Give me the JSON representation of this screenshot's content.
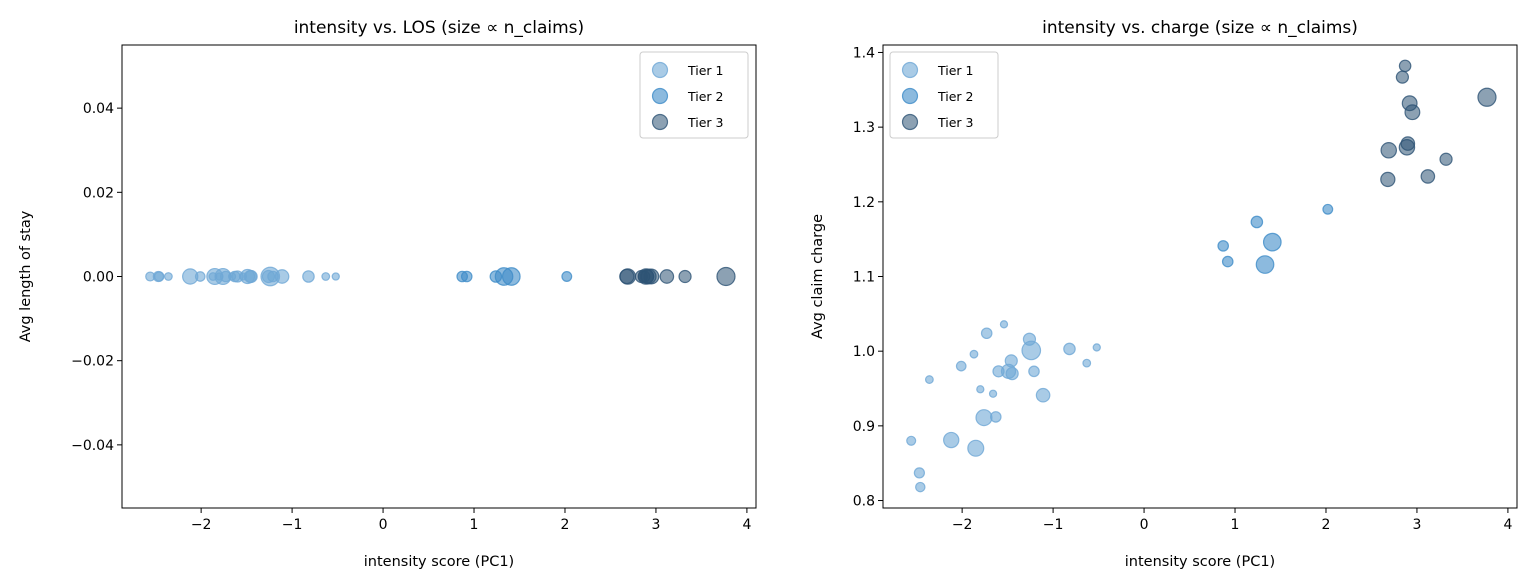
{
  "chart_data": [
    {
      "type": "scatter",
      "title": "intensity vs. LOS (size ∝ n_claims)",
      "xlabel": "intensity score (PC1)",
      "ylabel": "Avg length of stay",
      "xlim": [
        -2.87,
        4.1
      ],
      "ylim": [
        -0.055,
        0.055
      ],
      "xticks": [
        -2,
        -1,
        0,
        1,
        2,
        3,
        4
      ],
      "xtick_labels": [
        "−2",
        "−1",
        "0",
        "1",
        "2",
        "3",
        "4"
      ],
      "yticks": [
        -0.04,
        -0.02,
        0,
        0.02,
        0.04
      ],
      "ytick_labels": [
        "−0.04",
        "−0.02",
        "0.00",
        "0.02",
        "0.04"
      ],
      "legend": "top-right",
      "grid": false,
      "yfield": "los"
    },
    {
      "type": "scatter",
      "title": "intensity vs. charge (size ∝ n_claims)",
      "xlabel": "intensity score (PC1)",
      "ylabel": "Avg claim charge",
      "xlim": [
        -2.87,
        4.1
      ],
      "ylim": [
        0.79,
        1.41
      ],
      "xticks": [
        -2,
        -1,
        0,
        1,
        2,
        3,
        4
      ],
      "xtick_labels": [
        "−2",
        "−1",
        "0",
        "1",
        "2",
        "3",
        "4"
      ],
      "yticks": [
        0.8,
        0.9,
        1.0,
        1.1,
        1.2,
        1.3,
        1.4
      ],
      "ytick_labels": [
        "0.8",
        "0.9",
        "1.0",
        "1.1",
        "1.2",
        "1.3",
        "1.4"
      ],
      "legend": "top-left",
      "grid": false,
      "yfield": "charge"
    }
  ],
  "series": [
    {
      "name": "Tier 1",
      "color": "#6fa8d6",
      "alpha": 0.6,
      "points": [
        {
          "x": -2.36,
          "charge": 0.962,
          "los": 0,
          "n": 16
        },
        {
          "x": -2.01,
          "charge": 0.98,
          "los": 0,
          "n": 25
        },
        {
          "x": -1.87,
          "charge": 0.996,
          "los": 0,
          "n": 16
        },
        {
          "x": -1.73,
          "charge": 1.024,
          "los": 0,
          "n": 30
        },
        {
          "x": -1.54,
          "charge": 1.036,
          "los": 0,
          "n": 14
        },
        {
          "x": -1.8,
          "charge": 0.949,
          "los": 0,
          "n": 14
        },
        {
          "x": -1.66,
          "charge": 0.943,
          "los": 0,
          "n": 14
        },
        {
          "x": -1.76,
          "charge": 0.911,
          "los": 0,
          "n": 70
        },
        {
          "x": -1.63,
          "charge": 0.912,
          "los": 0,
          "n": 30
        },
        {
          "x": -2.56,
          "charge": 0.88,
          "los": 0,
          "n": 22
        },
        {
          "x": -2.12,
          "charge": 0.881,
          "los": 0,
          "n": 64
        },
        {
          "x": -1.85,
          "charge": 0.87,
          "los": 0,
          "n": 70
        },
        {
          "x": -2.47,
          "charge": 0.837,
          "los": 0,
          "n": 28
        },
        {
          "x": -2.46,
          "charge": 0.818,
          "los": 0,
          "n": 24
        },
        {
          "x": -1.6,
          "charge": 0.973,
          "los": 0,
          "n": 34
        },
        {
          "x": -1.46,
          "charge": 0.987,
          "los": 0,
          "n": 40
        },
        {
          "x": -1.49,
          "charge": 0.973,
          "los": 0,
          "n": 55
        },
        {
          "x": -1.45,
          "charge": 0.97,
          "los": 0,
          "n": 40
        },
        {
          "x": -1.26,
          "charge": 1.016,
          "los": 0,
          "n": 40
        },
        {
          "x": -1.24,
          "charge": 1.001,
          "los": 0,
          "n": 95
        },
        {
          "x": -1.21,
          "charge": 0.973,
          "los": 0,
          "n": 30
        },
        {
          "x": -1.11,
          "charge": 0.941,
          "los": 0,
          "n": 50
        },
        {
          "x": -0.82,
          "charge": 1.003,
          "los": 0,
          "n": 36
        },
        {
          "x": -0.63,
          "charge": 0.984,
          "los": 0,
          "n": 16
        },
        {
          "x": -0.52,
          "charge": 1.005,
          "los": 0,
          "n": 14
        }
      ]
    },
    {
      "name": "Tier 2",
      "color": "#3f8cc8",
      "alpha": 0.6,
      "points": [
        {
          "x": 0.87,
          "charge": 1.141,
          "los": 0,
          "n": 30
        },
        {
          "x": 0.92,
          "charge": 1.12,
          "los": 0,
          "n": 30
        },
        {
          "x": 1.24,
          "charge": 1.173,
          "los": 0,
          "n": 36
        },
        {
          "x": 1.41,
          "charge": 1.146,
          "los": 0,
          "n": 85
        },
        {
          "x": 1.33,
          "charge": 1.116,
          "los": 0,
          "n": 85
        },
        {
          "x": 2.02,
          "charge": 1.19,
          "los": 0,
          "n": 26
        }
      ]
    },
    {
      "name": "Tier 3",
      "color": "#2e5475",
      "alpha": 0.55,
      "points": [
        {
          "x": 2.87,
          "charge": 1.382,
          "los": 0,
          "n": 36
        },
        {
          "x": 2.84,
          "charge": 1.367,
          "los": 0,
          "n": 40
        },
        {
          "x": 2.92,
          "charge": 1.332,
          "los": 0,
          "n": 60
        },
        {
          "x": 2.95,
          "charge": 1.32,
          "los": 0,
          "n": 60
        },
        {
          "x": 2.9,
          "charge": 1.278,
          "los": 0,
          "n": 50
        },
        {
          "x": 2.89,
          "charge": 1.273,
          "los": 0,
          "n": 65
        },
        {
          "x": 2.69,
          "charge": 1.269,
          "los": 0,
          "n": 65
        },
        {
          "x": 3.32,
          "charge": 1.257,
          "los": 0,
          "n": 40
        },
        {
          "x": 3.12,
          "charge": 1.234,
          "los": 0,
          "n": 50
        },
        {
          "x": 2.68,
          "charge": 1.23,
          "los": 0,
          "n": 55
        },
        {
          "x": 3.77,
          "charge": 1.34,
          "los": 0,
          "n": 90
        }
      ]
    }
  ]
}
